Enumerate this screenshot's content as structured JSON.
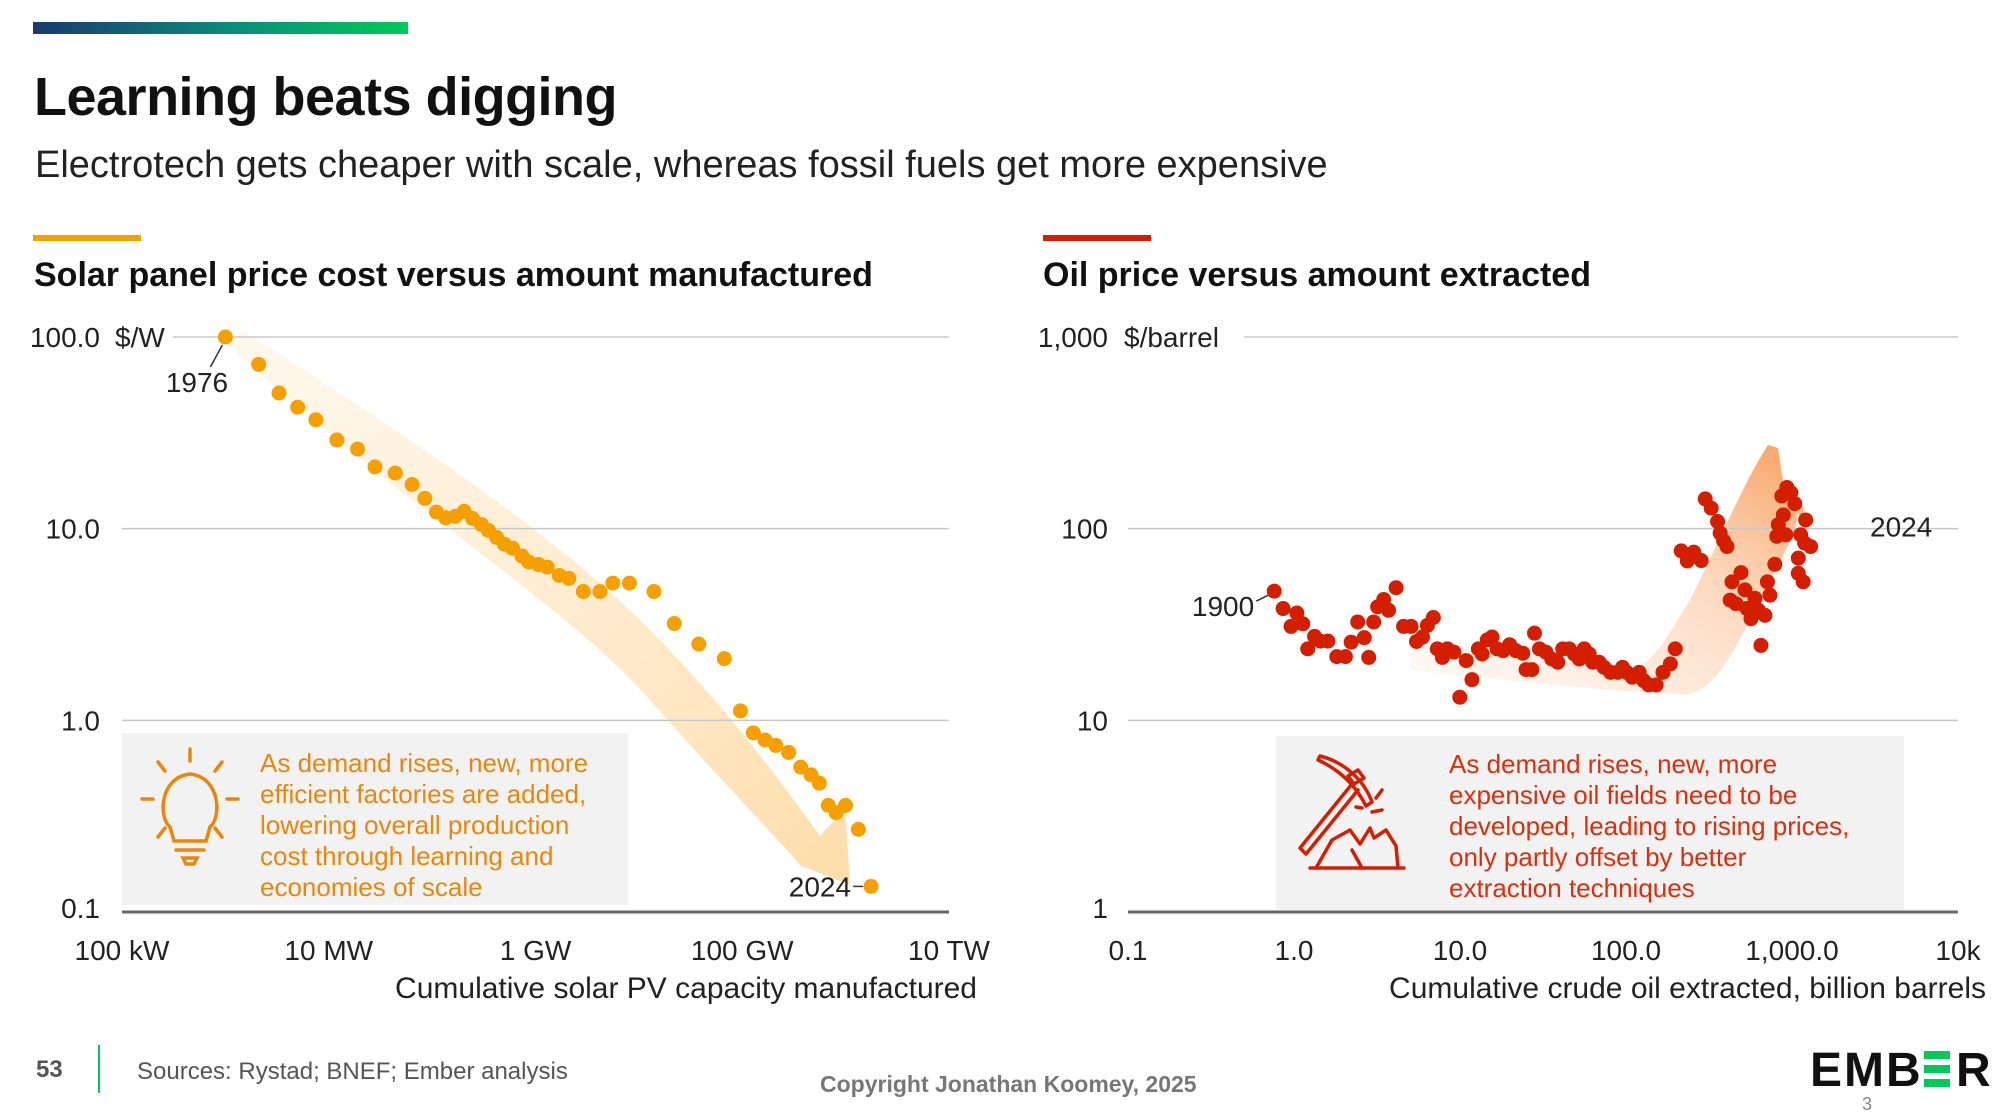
{
  "header": {
    "title": "Learning beats digging",
    "subtitle": "Electrotech gets cheaper with scale, whereas fossil fuels get more expensive"
  },
  "colors": {
    "solar": "#f5a000",
    "oil": "#d41e00",
    "solar_text": "#e8870c",
    "oil_text": "#d8300f",
    "ember_green": "#00c95a"
  },
  "chart_data": [
    {
      "type": "scatter",
      "title": "Solar panel price cost versus amount manufactured",
      "ylabel": "$/W",
      "xlabel": "Cumulative solar PV capacity manufactured",
      "x_scale": "log",
      "y_scale": "log",
      "x_unit": "GW",
      "xlim": [
        0.0001,
        10000
      ],
      "ylim": [
        0.1,
        100
      ],
      "x_ticks": [
        {
          "value": 0.0001,
          "label": "100 kW"
        },
        {
          "value": 0.01,
          "label": "10 MW"
        },
        {
          "value": 1,
          "label": "1 GW"
        },
        {
          "value": 100,
          "label": "100 GW"
        },
        {
          "value": 10000,
          "label": "10 TW"
        }
      ],
      "y_ticks": [
        {
          "value": 100,
          "label": "100.0"
        },
        {
          "value": 10,
          "label": "10.0"
        },
        {
          "value": 1,
          "label": "1.0"
        },
        {
          "value": 0.1,
          "label": "0.1"
        }
      ],
      "grid": true,
      "color": "#f5a000",
      "annotations": [
        {
          "label": "1976",
          "x": 0.001,
          "y": 100
        },
        {
          "label": "2024",
          "x": 1763,
          "y": 0.136
        }
      ],
      "note": "As demand rises, new, more efficient factories are added, lowering overall production cost through learning and economies of scale",
      "note_lines": [
        "As demand rises, new, more",
        "efficient factories are added,",
        "lowering overall production",
        "cost through learning and",
        "economies of scale"
      ],
      "icon": "lightbulb-icon",
      "points": [
        [
          0.001,
          100
        ],
        [
          0.0021,
          72
        ],
        [
          0.0033,
          51
        ],
        [
          0.005,
          43
        ],
        [
          0.0075,
          37
        ],
        [
          0.012,
          29
        ],
        [
          0.019,
          26
        ],
        [
          0.028,
          21
        ],
        [
          0.044,
          19.5
        ],
        [
          0.064,
          17
        ],
        [
          0.085,
          14.4
        ],
        [
          0.11,
          12.2
        ],
        [
          0.135,
          11.4
        ],
        [
          0.168,
          11.6
        ],
        [
          0.204,
          12.3
        ],
        [
          0.246,
          11.3
        ],
        [
          0.3,
          10.5
        ],
        [
          0.35,
          9.8
        ],
        [
          0.42,
          9.0
        ],
        [
          0.5,
          8.3
        ],
        [
          0.6,
          7.9
        ],
        [
          0.74,
          7.2
        ],
        [
          0.86,
          6.7
        ],
        [
          1.07,
          6.5
        ],
        [
          1.3,
          6.3
        ],
        [
          1.7,
          5.7
        ],
        [
          2.1,
          5.5
        ],
        [
          2.9,
          4.7
        ],
        [
          4.2,
          4.7
        ],
        [
          5.6,
          5.2
        ],
        [
          8.1,
          5.2
        ],
        [
          14,
          4.7
        ],
        [
          22,
          3.2
        ],
        [
          38,
          2.5
        ],
        [
          67,
          2.1
        ],
        [
          96,
          1.12
        ],
        [
          128,
          0.86
        ],
        [
          166,
          0.79
        ],
        [
          211,
          0.74
        ],
        [
          281,
          0.68
        ],
        [
          368,
          0.57
        ],
        [
          462,
          0.52
        ],
        [
          556,
          0.47
        ],
        [
          679,
          0.36
        ],
        [
          806,
          0.33
        ],
        [
          998,
          0.36
        ],
        [
          1327,
          0.27
        ],
        [
          1763,
          0.136
        ]
      ]
    },
    {
      "type": "scatter",
      "title": "Oil price versus amount extracted",
      "ylabel": "$/barrel",
      "xlabel": "Cumulative crude oil extracted, billion barrels",
      "x_scale": "log",
      "y_scale": "log",
      "xlim": [
        0.1,
        10000
      ],
      "ylim": [
        1,
        1000
      ],
      "x_ticks": [
        {
          "value": 0.1,
          "label": "0.1"
        },
        {
          "value": 1,
          "label": "1.0"
        },
        {
          "value": 10,
          "label": "10.0"
        },
        {
          "value": 100,
          "label": "100.0"
        },
        {
          "value": 1000,
          "label": "1,000.0"
        },
        {
          "value": 10000,
          "label": "10k"
        }
      ],
      "y_ticks": [
        {
          "value": 1000,
          "label": "1,000"
        },
        {
          "value": 100,
          "label": "100"
        },
        {
          "value": 10,
          "label": "10"
        },
        {
          "value": 1,
          "label": "1"
        }
      ],
      "grid": true,
      "color": "#d41e00",
      "annotations": [
        {
          "label": "1900",
          "x": 0.76,
          "y": 47.2
        },
        {
          "label": "2024",
          "x": 1295,
          "y": 80.7
        }
      ],
      "note": "As demand rises, new, more expensive oil fields need to be developed, leading to rising prices, only partly offset by better extraction techniques",
      "note_lines": [
        "As demand rises, new, more",
        "expensive oil fields need to be",
        "developed, leading to rising prices,",
        "only partly offset by better",
        "extraction techniques"
      ],
      "icon": "pickaxe-icon",
      "points": [
        [
          0.76,
          47.2
        ],
        [
          0.86,
          38.3
        ],
        [
          0.96,
          30.9
        ],
        [
          1.04,
          36.3
        ],
        [
          1.13,
          31.9
        ],
        [
          1.21,
          23.6
        ],
        [
          1.33,
          27.4
        ],
        [
          1.44,
          25.9
        ],
        [
          1.6,
          25.9
        ],
        [
          1.81,
          21.5
        ],
        [
          2.04,
          21.5
        ],
        [
          2.21,
          25.6
        ],
        [
          2.42,
          32.6
        ],
        [
          2.65,
          27
        ],
        [
          2.82,
          21.3
        ],
        [
          3.02,
          32.6
        ],
        [
          3.19,
          39.1
        ],
        [
          3.47,
          42.7
        ],
        [
          3.71,
          37.5
        ],
        [
          4.12,
          49.2
        ],
        [
          4.57,
          30.9
        ],
        [
          5.07,
          30.9
        ],
        [
          5.47,
          25.8
        ],
        [
          5.94,
          27.2
        ],
        [
          6.36,
          31.3
        ],
        [
          6.91,
          34.4
        ],
        [
          7.3,
          23.6
        ],
        [
          7.83,
          21.3
        ],
        [
          8.39,
          23.6
        ],
        [
          9.18,
          22.7
        ],
        [
          9.97,
          13.2
        ],
        [
          10.9,
          20.5
        ],
        [
          11.8,
          16.3
        ],
        [
          12.9,
          23.6
        ],
        [
          13.6,
          22.2
        ],
        [
          14.6,
          26.3
        ],
        [
          15.6,
          27.2
        ],
        [
          16.7,
          23.6
        ],
        [
          18.2,
          23.1
        ],
        [
          19.9,
          24.8
        ],
        [
          21.7,
          23.1
        ],
        [
          23.9,
          22.4
        ],
        [
          25,
          18.4
        ],
        [
          27.1,
          18.4
        ],
        [
          28.1,
          28.5
        ],
        [
          30.1,
          23.6
        ],
        [
          32.9,
          22.7
        ],
        [
          35.7,
          20.9
        ],
        [
          38.8,
          20.1
        ],
        [
          41.6,
          23.6
        ],
        [
          45.5,
          23.6
        ],
        [
          48.8,
          22.2
        ],
        [
          52.3,
          20.9
        ],
        [
          56,
          23.6
        ],
        [
          60,
          22.2
        ],
        [
          63,
          20.1
        ],
        [
          68.9,
          20.1
        ],
        [
          73.8,
          18.9
        ],
        [
          80.7,
          17.8
        ],
        [
          88.9,
          17.8
        ],
        [
          95.3,
          18.9
        ],
        [
          101,
          17.8
        ],
        [
          109,
          16.8
        ],
        [
          120,
          17.8
        ],
        [
          128,
          16.1
        ],
        [
          137,
          15.3
        ],
        [
          152,
          15.3
        ],
        [
          167,
          17.8
        ],
        [
          185,
          19.7
        ],
        [
          198,
          23.6
        ],
        [
          215,
          76.6
        ],
        [
          234,
          67.9
        ],
        [
          256,
          75.4
        ],
        [
          284,
          68.2
        ],
        [
          300,
          143
        ],
        [
          326,
          128
        ],
        [
          356,
          109
        ],
        [
          369,
          94.9
        ],
        [
          387,
          86.5
        ],
        [
          406,
          80.7
        ],
        [
          424,
          42.4
        ],
        [
          435,
          52.8
        ],
        [
          460,
          40.6
        ],
        [
          493,
          59
        ],
        [
          521,
          47.9
        ],
        [
          535,
          38.3
        ],
        [
          566,
          33.9
        ],
        [
          598,
          43.3
        ],
        [
          628,
          37.5
        ],
        [
          650,
          24.6
        ],
        [
          687,
          35.3
        ],
        [
          711,
          52.8
        ],
        [
          736,
          45
        ],
        [
          788,
          65.2
        ],
        [
          810,
          91.2
        ],
        [
          827,
          105
        ],
        [
          868,
          148
        ],
        [
          887,
          118
        ],
        [
          918,
          92.9
        ],
        [
          931,
          164
        ],
        [
          984,
          154
        ],
        [
          1039,
          135
        ],
        [
          1091,
          70.2
        ],
        [
          1091,
          58.5
        ],
        [
          1128,
          92.9
        ],
        [
          1168,
          52.8
        ],
        [
          1192,
          84.1
        ],
        [
          1208,
          111
        ],
        [
          1295,
          80.7
        ]
      ]
    }
  ],
  "footer": {
    "page_number": "53",
    "sources": "Sources: Rystad; BNEF; Ember analysis",
    "copyright": "Copyright Jonathan Koomey, 2025",
    "logo": "EMBER",
    "logo_overlay": "3"
  }
}
